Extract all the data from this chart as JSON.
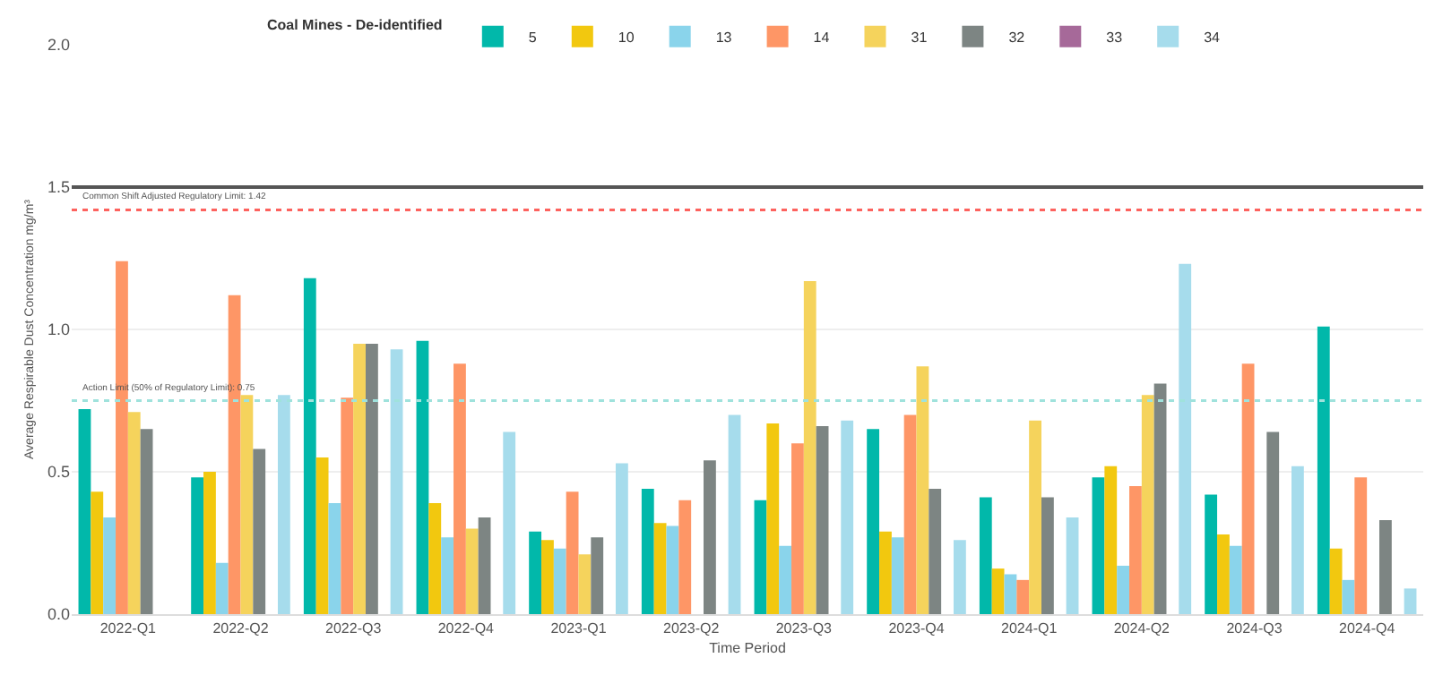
{
  "chart_data": {
    "type": "bar",
    "xlabel": "Time Period",
    "ylabel": "Average Respirable Dust Concentration mg/m³",
    "legend_title": "Coal Mines - De-identified",
    "legend": "top",
    "grid": "y",
    "ylim": [
      0,
      2
    ],
    "yticks": [
      {
        "value": 0,
        "label": "0.0"
      },
      0.5,
      {
        "value": 1,
        "label": "1.0"
      },
      1.5,
      {
        "value": 2,
        "label": "2.0"
      }
    ],
    "categories": [
      "2022-Q1",
      "2022-Q2",
      "2022-Q3",
      "2022-Q4",
      "2023-Q1",
      "2023-Q2",
      "2023-Q3",
      "2023-Q4",
      "2024-Q1",
      "2024-Q2",
      "2024-Q3",
      "2024-Q4"
    ],
    "series": [
      {
        "name": "5",
        "color": "#01b8aa",
        "values": [
          0.72,
          0.48,
          1.18,
          0.96,
          0.29,
          0.44,
          0.4,
          0.65,
          0.41,
          0.48,
          0.42,
          1.01
        ]
      },
      {
        "name": "10",
        "color": "#f2c80f",
        "values": [
          0.43,
          0.5,
          0.55,
          0.39,
          0.26,
          0.32,
          0.67,
          0.29,
          0.16,
          0.52,
          0.28,
          0.23
        ]
      },
      {
        "name": "13",
        "color": "#8ad4eb",
        "values": [
          0.34,
          0.18,
          0.39,
          0.27,
          0.23,
          0.31,
          0.24,
          0.27,
          0.14,
          0.17,
          0.24,
          0.12
        ]
      },
      {
        "name": "14",
        "color": "#fe9666",
        "values": [
          1.24,
          1.12,
          0.76,
          0.88,
          0.43,
          0.4,
          0.6,
          0.7,
          0.12,
          0.45,
          0.88,
          0.48
        ]
      },
      {
        "name": "31",
        "color": "#f5d35c",
        "values": [
          0.71,
          0.77,
          0.95,
          0.3,
          0.21,
          null,
          1.17,
          0.87,
          0.68,
          0.77,
          null,
          null
        ]
      },
      {
        "name": "32",
        "color": "#7d8583",
        "values": [
          0.65,
          0.58,
          0.95,
          0.34,
          0.27,
          0.54,
          0.66,
          0.44,
          0.41,
          0.81,
          0.64,
          0.33
        ]
      },
      {
        "name": "33",
        "color": "#a66999",
        "values": [
          null,
          null,
          null,
          null,
          null,
          null,
          null,
          null,
          null,
          null,
          null,
          null
        ]
      },
      {
        "name": "34",
        "color": "#a6dcec",
        "values": [
          null,
          0.77,
          0.93,
          0.64,
          0.53,
          0.7,
          0.68,
          0.26,
          0.34,
          1.23,
          0.52,
          0.09
        ]
      }
    ],
    "ref_lines": [
      {
        "axis": "y",
        "value": 1.5,
        "label": null,
        "color": "#555555",
        "line_style": "solid"
      },
      {
        "axis": "y",
        "value": 1.42,
        "label": "Common Shift Adjusted Regulatory Limit: 1.42",
        "color": "#fd625e",
        "line_style": "dotted"
      },
      {
        "axis": "y",
        "value": 0.75,
        "label": "Action Limit (50% of Regulatory Limit): 0.75",
        "color": "#9fe2dc",
        "line_style": "dotted"
      }
    ]
  }
}
